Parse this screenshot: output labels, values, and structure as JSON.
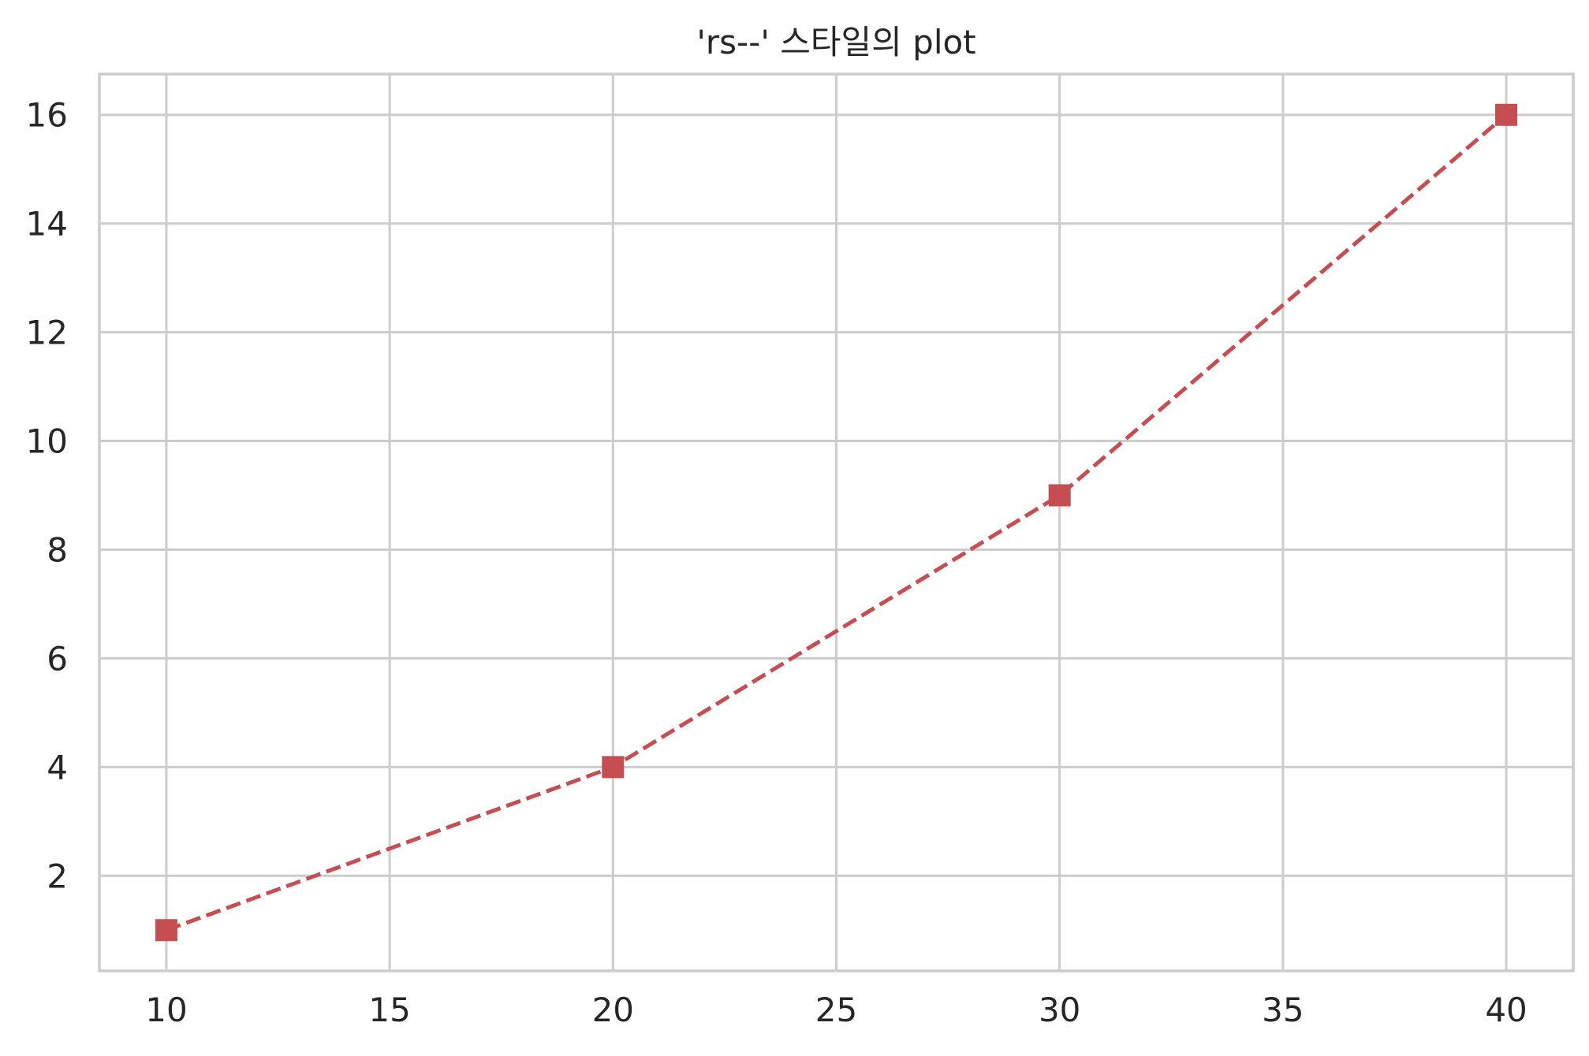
{
  "chart_data": {
    "type": "line",
    "title": "'rs--' 스타일의 plot",
    "xlabel": "",
    "ylabel": "",
    "x": [
      10,
      20,
      30,
      40
    ],
    "series": [
      {
        "values": [
          1,
          4,
          9,
          16
        ],
        "color": "#c44e52",
        "line_style": "dashed",
        "marker": "square"
      }
    ],
    "xlim": [
      8.5,
      41.5
    ],
    "ylim": [
      0.25,
      16.75
    ],
    "xticks": [
      10,
      15,
      20,
      25,
      30,
      35,
      40
    ],
    "yticks": [
      2,
      4,
      6,
      8,
      10,
      12,
      14,
      16
    ],
    "grid": true,
    "legend": "none"
  }
}
